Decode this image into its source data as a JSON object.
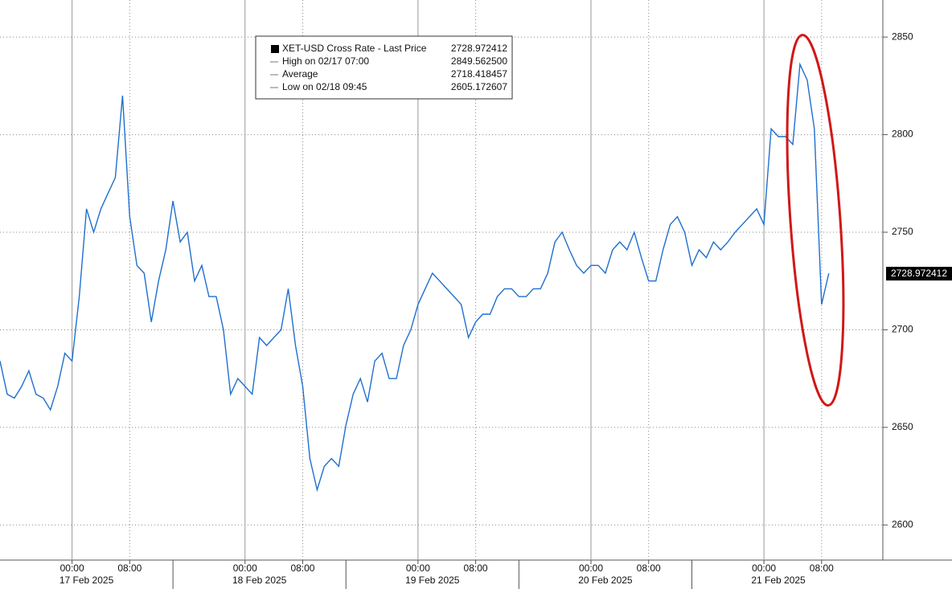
{
  "chart_data": {
    "type": "line",
    "series": [
      {
        "name": "XET-USD Cross Rate - Last Price",
        "color": "#1f6fcf",
        "values": [
          2684,
          2667,
          2665,
          2671,
          2679,
          2667,
          2665,
          2659,
          2671,
          2688,
          2684,
          2717,
          2762,
          2750,
          2762,
          2770,
          2778,
          2820,
          2758,
          2733,
          2729,
          2704,
          2725,
          2741,
          2766,
          2745,
          2750,
          2725,
          2733,
          2717,
          2717,
          2700,
          2667,
          2675,
          2671,
          2667,
          2696,
          2692,
          2696,
          2700,
          2721,
          2692,
          2671,
          2634,
          2618,
          2630,
          2634,
          2630,
          2651,
          2667,
          2675,
          2663,
          2684,
          2688,
          2675,
          2675,
          2692,
          2700,
          2713,
          2721,
          2729,
          2725,
          2721,
          2717,
          2713,
          2696,
          2704,
          2708,
          2708,
          2717,
          2721,
          2721,
          2717,
          2717,
          2721,
          2721,
          2729,
          2745,
          2750,
          2741,
          2733,
          2729,
          2733,
          2733,
          2729,
          2741,
          2745,
          2741,
          2750,
          2737,
          2725,
          2725,
          2741,
          2754,
          2758,
          2750,
          2733,
          2741,
          2737,
          2745,
          2741,
          2745,
          2750,
          2754,
          2758,
          2762,
          2754,
          2803,
          2799,
          2799,
          2795,
          2836,
          2828,
          2803,
          2713,
          2728.972412
        ]
      }
    ],
    "legend": [
      {
        "label": "XET-USD Cross Rate - Last Price",
        "value": "2728.972412"
      },
      {
        "label": "High on 02/17 07:00",
        "value": "2849.562500"
      },
      {
        "label": "Average",
        "value": "2718.418457"
      },
      {
        "label": "Low on 02/18 09:45",
        "value": "2605.172607"
      }
    ],
    "last_price_label": "2728.972412",
    "xlim": [
      0,
      122.5
    ],
    "xticks": [
      {
        "value": 10,
        "label": "00:00"
      },
      {
        "value": 18,
        "label": "08:00"
      },
      {
        "value": 34,
        "label": "00:00"
      },
      {
        "value": 42,
        "label": "08:00"
      },
      {
        "value": 58,
        "label": "00:00"
      },
      {
        "value": 66,
        "label": "08:00"
      },
      {
        "value": 82,
        "label": "00:00"
      },
      {
        "value": 90,
        "label": "08:00"
      },
      {
        "value": 106,
        "label": "00:00"
      },
      {
        "value": 114,
        "label": "08:00"
      }
    ],
    "day_labels": [
      {
        "value": 12,
        "label": "17 Feb 2025"
      },
      {
        "value": 36,
        "label": "18 Feb 2025"
      },
      {
        "value": 60,
        "label": "19 Feb 2025"
      },
      {
        "value": 84,
        "label": "20 Feb 2025"
      },
      {
        "value": 108,
        "label": "21 Feb 2025"
      }
    ],
    "ylim": [
      2582,
      2869
    ],
    "yticks": [
      2600,
      2650,
      2700,
      2750,
      2800,
      2850
    ],
    "grid": true
  }
}
